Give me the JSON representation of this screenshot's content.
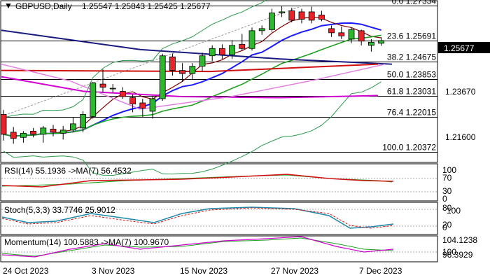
{
  "header": {
    "symbol": "GBPUSD,Daily",
    "ohlc": "1.25547 1.25843 1.25425 1.25677"
  },
  "price_axis": {
    "ticks": [
      "1.23670",
      "1.21600"
    ],
    "current_price": "1.25677"
  },
  "fib_levels": [
    {
      "label": "0.0 1.27334",
      "price": 1.27334
    },
    {
      "label": "23.6 1.25691",
      "price": 1.25691
    },
    {
      "label": "38.2 1.24675",
      "price": 1.24675
    },
    {
      "label": "50.0 1.23853",
      "price": 1.23853
    },
    {
      "label": "61.8 1.23031",
      "price": 1.23031
    },
    {
      "label": "76.4 1.22015",
      "price": 1.22015
    },
    {
      "label": "100.0 1.20372",
      "price": 1.20372
    }
  ],
  "indicators": {
    "rsi": {
      "label": "RSI(14) 55.1936  ->MA(7) 56.4532",
      "ticks": [
        "100",
        "70",
        "30",
        "0"
      ]
    },
    "stoch": {
      "label": "Stoch(5,3,3) 33.7746 25.9012",
      "ticks": [
        "80",
        "100",
        "20",
        "0"
      ]
    },
    "momentum": {
      "label": "Momentum(14) 100.5883  ->MA(7) 100.9670",
      "ticks": [
        "104.1238",
        "100",
        "96.3929"
      ]
    }
  },
  "x_axis": {
    "labels": [
      "24 Oct 2023",
      "3 Nov 2023",
      "15 Nov 2023",
      "27 Nov 2023",
      "7 Dec 2023"
    ]
  },
  "colors": {
    "bull": "#2db82d",
    "bear": "#e8232a",
    "ma_blue": "#1a1aff",
    "ma_navy": "#1a1a80",
    "ma_red": "#d01010",
    "ma_magenta": "#d000d0",
    "ma_violet": "#e080e0",
    "ma_darkred": "#800000",
    "ma_green": "#20a020",
    "bollinger": "#2a9a4a",
    "price_label_bg": "#000000"
  },
  "chart_data": {
    "type": "candlestick",
    "title": "GBPUSD,Daily",
    "ylim": [
      1.1989,
      1.2755
    ],
    "candles": [
      {
        "o": 1.2215,
        "h": 1.2236,
        "l": 1.209,
        "c": 1.212
      },
      {
        "o": 1.213,
        "h": 1.2155,
        "l": 1.2075,
        "c": 1.21
      },
      {
        "o": 1.2105,
        "h": 1.2135,
        "l": 1.208,
        "c": 1.2125
      },
      {
        "o": 1.2135,
        "h": 1.215,
        "l": 1.2105,
        "c": 1.212
      },
      {
        "o": 1.212,
        "h": 1.216,
        "l": 1.208,
        "c": 1.215
      },
      {
        "o": 1.2145,
        "h": 1.2165,
        "l": 1.211,
        "c": 1.213
      },
      {
        "o": 1.2125,
        "h": 1.216,
        "l": 1.2095,
        "c": 1.214
      },
      {
        "o": 1.214,
        "h": 1.22,
        "l": 1.213,
        "c": 1.217
      },
      {
        "o": 1.215,
        "h": 1.223,
        "l": 1.213,
        "c": 1.2215
      },
      {
        "o": 1.2205,
        "h": 1.237,
        "l": 1.2195,
        "c": 1.2365
      },
      {
        "o": 1.236,
        "h": 1.243,
        "l": 1.232,
        "c": 1.2345
      },
      {
        "o": 1.234,
        "h": 1.236,
        "l": 1.232,
        "c": 1.234
      },
      {
        "o": 1.2325,
        "h": 1.2345,
        "l": 1.229,
        "c": 1.23
      },
      {
        "o": 1.2295,
        "h": 1.231,
        "l": 1.2225,
        "c": 1.2265
      },
      {
        "o": 1.227,
        "h": 1.229,
        "l": 1.22,
        "c": 1.2245
      },
      {
        "o": 1.223,
        "h": 1.23,
        "l": 1.2195,
        "c": 1.229
      },
      {
        "o": 1.229,
        "h": 1.2505,
        "l": 1.228,
        "c": 1.2495
      },
      {
        "o": 1.249,
        "h": 1.2505,
        "l": 1.24,
        "c": 1.2425
      },
      {
        "o": 1.2425,
        "h": 1.246,
        "l": 1.237,
        "c": 1.241
      },
      {
        "o": 1.241,
        "h": 1.246,
        "l": 1.238,
        "c": 1.2445
      },
      {
        "o": 1.2445,
        "h": 1.251,
        "l": 1.242,
        "c": 1.2495
      },
      {
        "o": 1.2495,
        "h": 1.2545,
        "l": 1.247,
        "c": 1.253
      },
      {
        "o": 1.253,
        "h": 1.255,
        "l": 1.248,
        "c": 1.25
      },
      {
        "o": 1.25,
        "h": 1.257,
        "l": 1.248,
        "c": 1.2545
      },
      {
        "o": 1.255,
        "h": 1.26,
        "l": 1.252,
        "c": 1.253
      },
      {
        "o": 1.253,
        "h": 1.263,
        "l": 1.252,
        "c": 1.2615
      },
      {
        "o": 1.2615,
        "h": 1.264,
        "l": 1.2595,
        "c": 1.2625
      },
      {
        "o": 1.262,
        "h": 1.272,
        "l": 1.261,
        "c": 1.27
      },
      {
        "o": 1.27,
        "h": 1.2733,
        "l": 1.268,
        "c": 1.2705
      },
      {
        "o": 1.271,
        "h": 1.2725,
        "l": 1.2655,
        "c": 1.2665
      },
      {
        "o": 1.2705,
        "h": 1.272,
        "l": 1.265,
        "c": 1.267
      },
      {
        "o": 1.2705,
        "h": 1.273,
        "l": 1.265,
        "c": 1.2665
      },
      {
        "o": 1.269,
        "h": 1.271,
        "l": 1.266,
        "c": 1.267
      },
      {
        "o": 1.2625,
        "h": 1.264,
        "l": 1.2585,
        "c": 1.2605
      },
      {
        "o": 1.2605,
        "h": 1.2635,
        "l": 1.2575,
        "c": 1.259
      },
      {
        "o": 1.2575,
        "h": 1.263,
        "l": 1.2555,
        "c": 1.262
      },
      {
        "o": 1.2615,
        "h": 1.262,
        "l": 1.2545,
        "c": 1.2565
      },
      {
        "o": 1.2545,
        "h": 1.2575,
        "l": 1.2515,
        "c": 1.256
      },
      {
        "o": 1.2555,
        "h": 1.2584,
        "l": 1.2543,
        "c": 1.2568
      }
    ]
  }
}
